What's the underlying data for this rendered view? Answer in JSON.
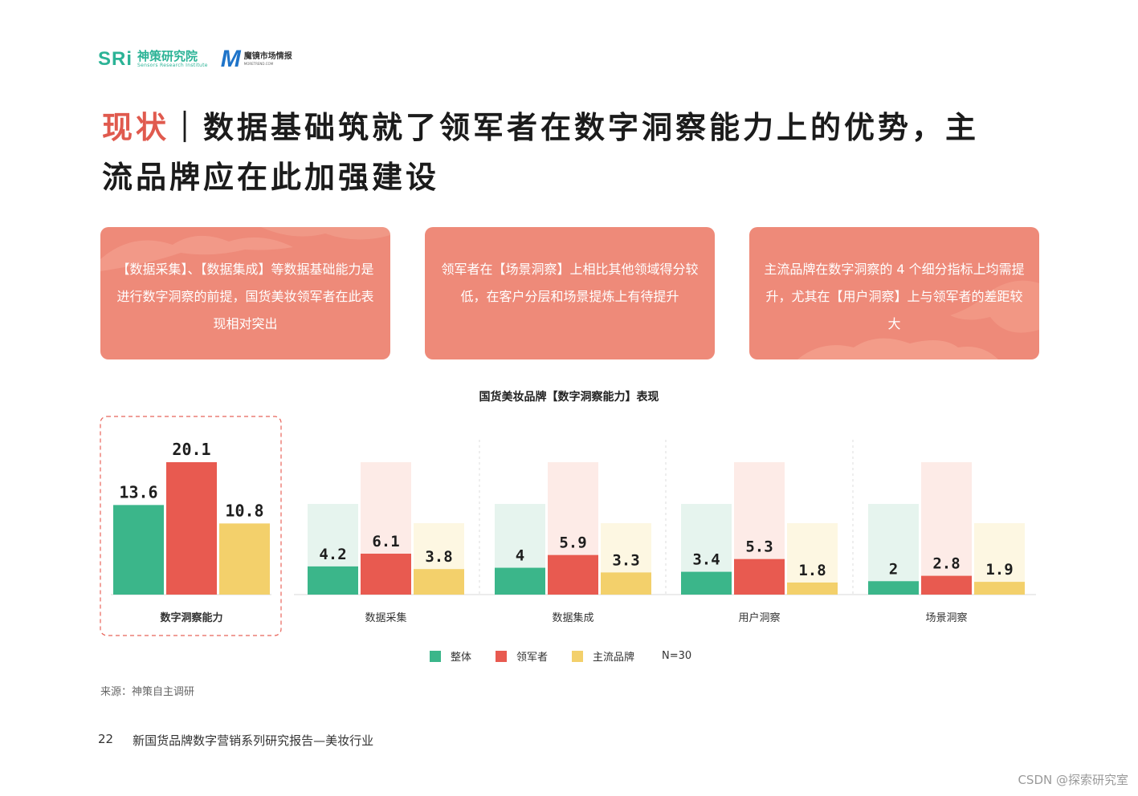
{
  "header": {
    "logo1_mark": "SRi",
    "logo1_cn": "神策研究院",
    "logo1_en": "Sensors Research Institute",
    "logo2_mark": "M",
    "logo2_cn": "魔镜市场情报",
    "logo2_en": "MORETREND.COM"
  },
  "title": {
    "accent": "现状",
    "separator": "｜",
    "line1": "数据基础筑就了领军者在数字洞察能力上的优势，主",
    "line2": "流品牌应在此加强建设"
  },
  "cards": [
    {
      "text": "【数据采集】、【数据集成】等数据基础能力是进行数字洞察的前提，国货美妆领军者在此表现相对突出"
    },
    {
      "text": "领军者在【场景洞察】上相比其他领域得分较低，在客户分层和场景提炼上有待提升"
    },
    {
      "text": "主流品牌在数字洞察的 4 个细分指标上均需提升，尤其在【用户洞察】上与领军者的差距较大"
    }
  ],
  "chart_data": {
    "type": "bar",
    "title": "国货美妆品牌【数字洞察能力】表现",
    "categories": [
      "数字洞察能力",
      "数据采集",
      "数据集成",
      "用户洞察",
      "场景洞察"
    ],
    "series": [
      {
        "name": "整体",
        "color": "#3bb68a",
        "values": [
          13.6,
          4.2,
          4,
          3.4,
          2
        ]
      },
      {
        "name": "领军者",
        "color": "#e85a50",
        "values": [
          20.1,
          6.1,
          5.9,
          5.3,
          2.8
        ]
      },
      {
        "name": "主流品牌",
        "color": "#f3d06b",
        "values": [
          10.8,
          3.8,
          3.3,
          1.8,
          1.9
        ]
      }
    ],
    "value_labels": [
      [
        "13.6",
        "20.1",
        "10.8"
      ],
      [
        "4.2",
        "6.1",
        "3.8"
      ],
      [
        "4",
        "5.9",
        "3.3"
      ],
      [
        "3.4",
        "5.3",
        "1.8"
      ],
      [
        "2",
        "2.8",
        "1.9"
      ]
    ],
    "note": "N=30",
    "highlighted_category": "数字洞察能力",
    "legend_position": "bottom"
  },
  "source": "来源：神策自主调研",
  "footer": {
    "page": "22",
    "report": "新国货品牌数字营销系列研究报告—美妆行业"
  },
  "watermark": "CSDN @探索研究室"
}
